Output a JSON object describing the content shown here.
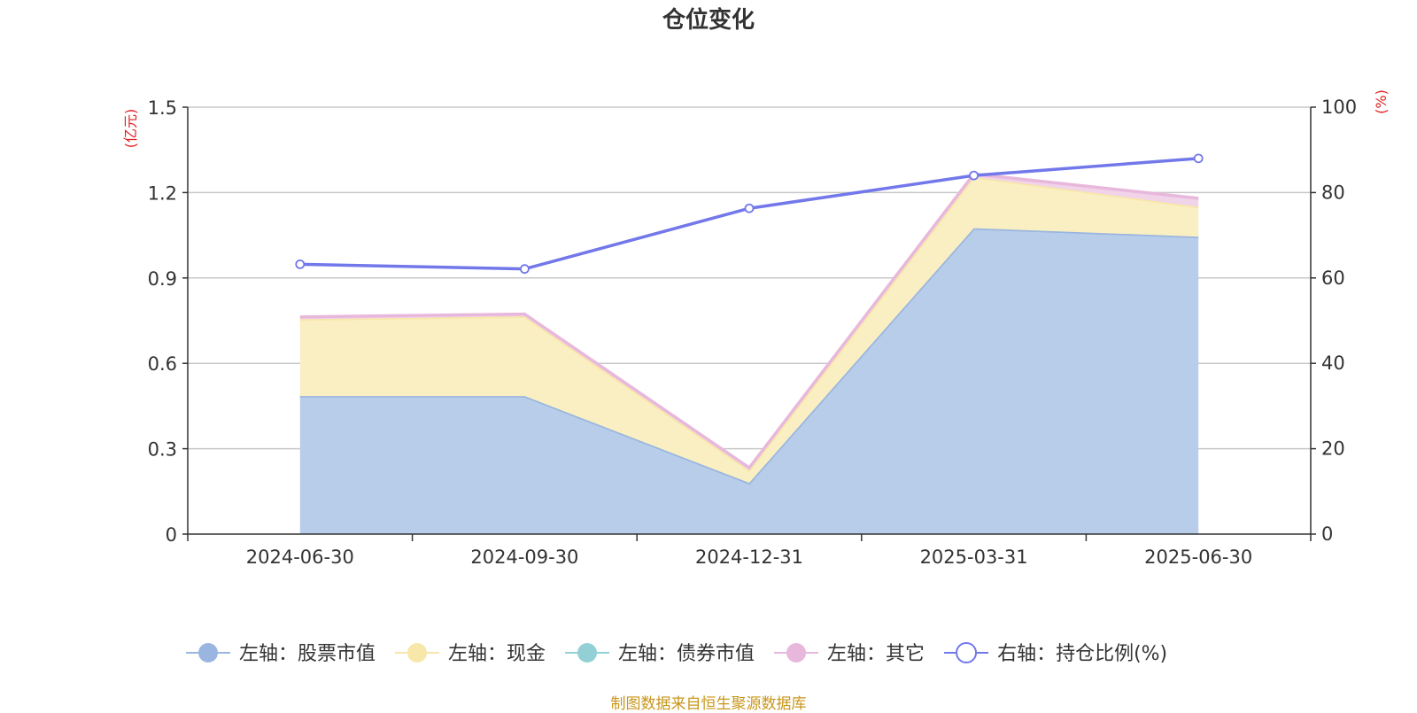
{
  "chart_data": {
    "type": "area",
    "title": "仓位变化",
    "categories": [
      "2024-06-30",
      "2024-09-30",
      "2024-12-31",
      "2025-03-31",
      "2025-06-30"
    ],
    "stacked": true,
    "left_axis": {
      "unit": "(亿元)",
      "ticks": [
        "0",
        "0.3",
        "0.6",
        "0.9",
        "1.2",
        "1.5"
      ],
      "ylim": [
        0,
        1.5
      ]
    },
    "right_axis": {
      "unit": "(%)",
      "ticks": [
        "0",
        "20",
        "40",
        "60",
        "80",
        "100"
      ],
      "ylim": [
        0,
        100
      ]
    },
    "series": [
      {
        "name": "左轴：股票市值",
        "axis": "left",
        "values": [
          0.485,
          0.485,
          0.18,
          1.075,
          1.045
        ],
        "color": "#9ab6e0",
        "fill": "#b8cde9"
      },
      {
        "name": "左轴：现金",
        "axis": "left",
        "values": [
          0.27,
          0.28,
          0.045,
          0.18,
          0.105
        ],
        "color": "#f7e7a8",
        "fill": "#faefc2"
      },
      {
        "name": "左轴：债券市值",
        "axis": "left",
        "values": [
          0,
          0,
          0,
          0,
          0
        ],
        "color": "#92d0d5",
        "fill": "#bde3e6"
      },
      {
        "name": "左轴：其它",
        "axis": "left",
        "values": [
          0.008,
          0.008,
          0.008,
          0.01,
          0.03
        ],
        "color": "#e8b8dc",
        "fill": "#f1d3ea"
      },
      {
        "name": "右轴：持仓比例(%)",
        "axis": "right",
        "type": "line",
        "values": [
          63.2,
          62.1,
          76.3,
          84.0,
          88.0
        ],
        "color": "#7278ea"
      }
    ],
    "grid": true,
    "legend_position": "bottom"
  },
  "footer": {
    "source": "制图数据来自恒生聚源数据库"
  }
}
